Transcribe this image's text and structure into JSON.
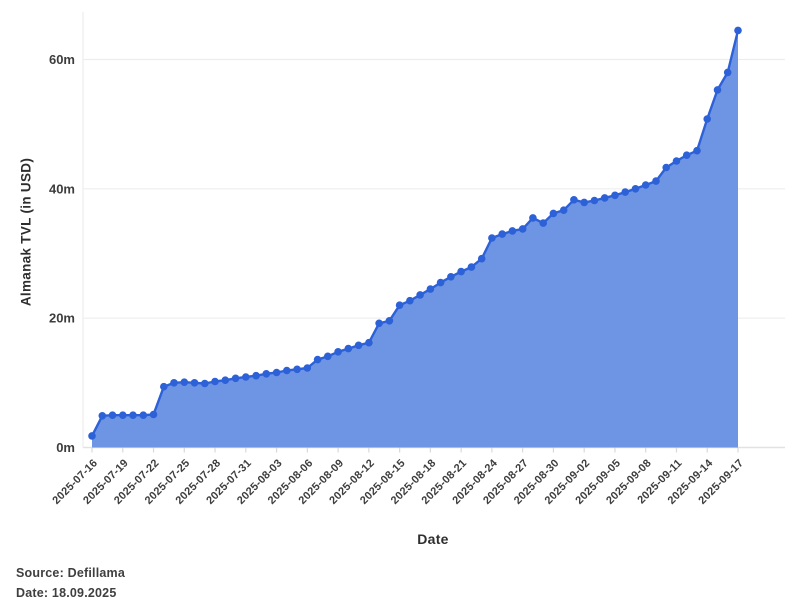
{
  "footer": {
    "source": "Source: Defillama",
    "date": "Date: 18.09.2025"
  },
  "chart_data": {
    "type": "area",
    "title": "",
    "xlabel": "Date",
    "ylabel": "Almanak TVL (in USD)",
    "series_name": "Almanak TVL",
    "x": [
      "2025-07-16",
      "2025-07-17",
      "2025-07-18",
      "2025-07-19",
      "2025-07-20",
      "2025-07-21",
      "2025-07-22",
      "2025-07-23",
      "2025-07-24",
      "2025-07-25",
      "2025-07-26",
      "2025-07-27",
      "2025-07-28",
      "2025-07-29",
      "2025-07-30",
      "2025-07-31",
      "2025-08-01",
      "2025-08-02",
      "2025-08-03",
      "2025-08-04",
      "2025-08-05",
      "2025-08-06",
      "2025-08-07",
      "2025-08-08",
      "2025-08-09",
      "2025-08-10",
      "2025-08-11",
      "2025-08-12",
      "2025-08-13",
      "2025-08-14",
      "2025-08-15",
      "2025-08-16",
      "2025-08-17",
      "2025-08-18",
      "2025-08-19",
      "2025-08-20",
      "2025-08-21",
      "2025-08-22",
      "2025-08-23",
      "2025-08-24",
      "2025-08-25",
      "2025-08-26",
      "2025-08-27",
      "2025-08-28",
      "2025-08-29",
      "2025-08-30",
      "2025-08-31",
      "2025-09-01",
      "2025-09-02",
      "2025-09-03",
      "2025-09-04",
      "2025-09-05",
      "2025-09-06",
      "2025-09-07",
      "2025-09-08",
      "2025-09-09",
      "2025-09-10",
      "2025-09-11",
      "2025-09-12",
      "2025-09-13",
      "2025-09-14",
      "2025-09-15",
      "2025-09-16",
      "2025-09-17"
    ],
    "values": [
      1.8,
      4.9,
      5.0,
      5.0,
      5.0,
      5.0,
      5.1,
      9.4,
      10.0,
      10.1,
      10.0,
      9.9,
      10.2,
      10.4,
      10.7,
      10.9,
      11.1,
      11.4,
      11.6,
      11.9,
      12.1,
      12.3,
      13.6,
      14.1,
      14.8,
      15.3,
      15.8,
      16.2,
      19.2,
      19.6,
      22.0,
      22.7,
      23.6,
      24.5,
      25.5,
      26.4,
      27.2,
      27.9,
      29.2,
      32.4,
      33.0,
      33.5,
      33.8,
      35.5,
      34.7,
      36.2,
      36.7,
      38.3,
      37.9,
      38.2,
      38.6,
      39.0,
      39.5,
      40.0,
      40.6,
      41.2,
      43.3,
      44.3,
      45.2,
      45.9,
      50.8,
      55.3,
      58.0,
      64.5
    ],
    "ylim": [
      0,
      67
    ],
    "yticks": {
      "values": [
        0,
        20,
        40,
        60
      ],
      "labels": [
        "0m",
        "20m",
        "40m",
        "60m"
      ]
    },
    "xtick_every": 3,
    "grid": true,
    "legend": false,
    "colors": {
      "line": "#2d61d8",
      "fill": "#6e94e4",
      "dot": "#2d61d8",
      "grid": "#ededed",
      "axis": "#e2e2e2",
      "tick": "#d9d9d9",
      "tick_text": "#3d3d3d",
      "title_text": "#2e2e2e"
    }
  }
}
